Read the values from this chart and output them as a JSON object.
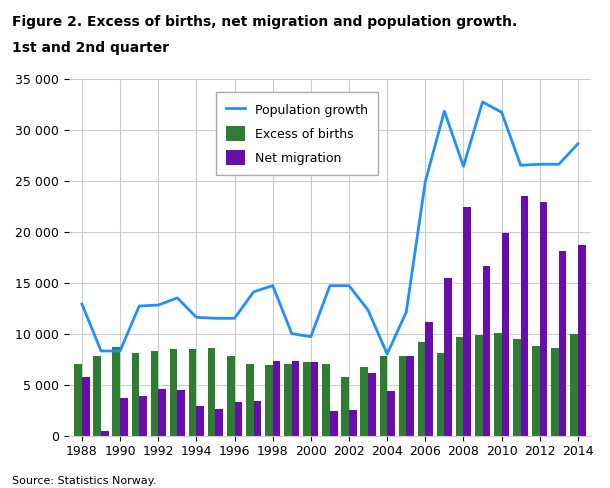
{
  "title_line1": "Figure 2. Excess of births, net migration and population growth.",
  "title_line2": "1st and 2nd quarter",
  "source": "Source: Statistics Norway.",
  "years": [
    1988,
    1989,
    1990,
    1991,
    1992,
    1993,
    1994,
    1995,
    1996,
    1997,
    1998,
    1999,
    2000,
    2001,
    2002,
    2003,
    2004,
    2005,
    2006,
    2007,
    2008,
    2009,
    2010,
    2011,
    2012,
    2013,
    2014
  ],
  "excess_births": [
    7000,
    7800,
    8700,
    8100,
    8300,
    8500,
    8500,
    8600,
    7800,
    7000,
    6900,
    7000,
    7200,
    7000,
    5700,
    6700,
    7800,
    7800,
    9200,
    8100,
    9700,
    9900,
    10100,
    9500,
    8800,
    8600,
    10000
  ],
  "net_migration": [
    5700,
    500,
    3700,
    3900,
    4600,
    4500,
    2900,
    2600,
    3300,
    3400,
    7300,
    7300,
    7200,
    2400,
    2500,
    6100,
    4400,
    7800,
    11100,
    15500,
    22400,
    16600,
    19900,
    23500,
    22900,
    18100,
    18700
  ],
  "population_growth": [
    12900,
    8300,
    8300,
    12700,
    12800,
    13500,
    11600,
    11500,
    11500,
    14100,
    14700,
    10000,
    9700,
    14700,
    14700,
    12300,
    8000,
    12100,
    24900,
    31800,
    26400,
    32700,
    31700,
    26500,
    26600,
    26600,
    28600
  ],
  "bar_color_births": "#2e7d32",
  "bar_color_migration": "#6a0dad",
  "line_color": "#1e90ff",
  "background_color": "#ffffff",
  "grid_color": "#cccccc",
  "ylim": [
    0,
    35000
  ],
  "yticks": [
    0,
    5000,
    10000,
    15000,
    20000,
    25000,
    30000,
    35000
  ],
  "legend_labels": [
    "Excess of births",
    "Net migration",
    "Population growth"
  ]
}
